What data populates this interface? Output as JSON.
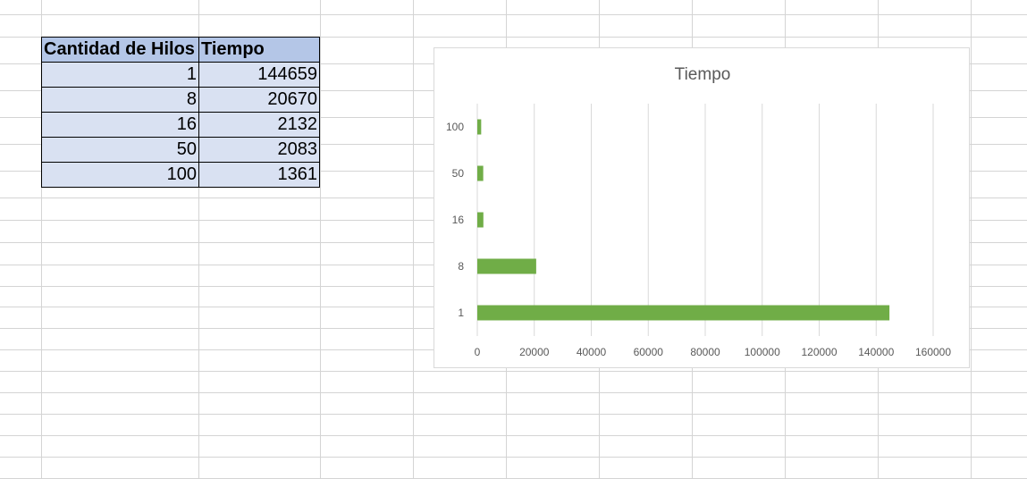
{
  "table": {
    "headers": [
      "Cantidad de Hilos",
      "Tiempo"
    ],
    "rows": [
      {
        "hilos": "1",
        "tiempo": "144659"
      },
      {
        "hilos": "8",
        "tiempo": "20670"
      },
      {
        "hilos": "16",
        "tiempo": "2132"
      },
      {
        "hilos": "50",
        "tiempo": "2083"
      },
      {
        "hilos": "100",
        "tiempo": "1361"
      }
    ]
  },
  "chart_data": {
    "type": "bar",
    "orientation": "horizontal",
    "title": "Tiempo",
    "categories": [
      "1",
      "8",
      "16",
      "50",
      "100"
    ],
    "values": [
      144659,
      20670,
      2132,
      2083,
      1361
    ],
    "xlim": [
      0,
      160000
    ],
    "xticks": [
      "0",
      "20000",
      "40000",
      "60000",
      "80000",
      "100000",
      "120000",
      "140000",
      "160000"
    ],
    "grid": "vertical",
    "legend": "none",
    "bar_color": "#70ad47",
    "grid_color": "#d9d9d9"
  },
  "colors": {
    "header_fill": "#b4c6e7",
    "cell_fill": "#d9e1f2",
    "sheet_grid": "#d4d4d4"
  }
}
